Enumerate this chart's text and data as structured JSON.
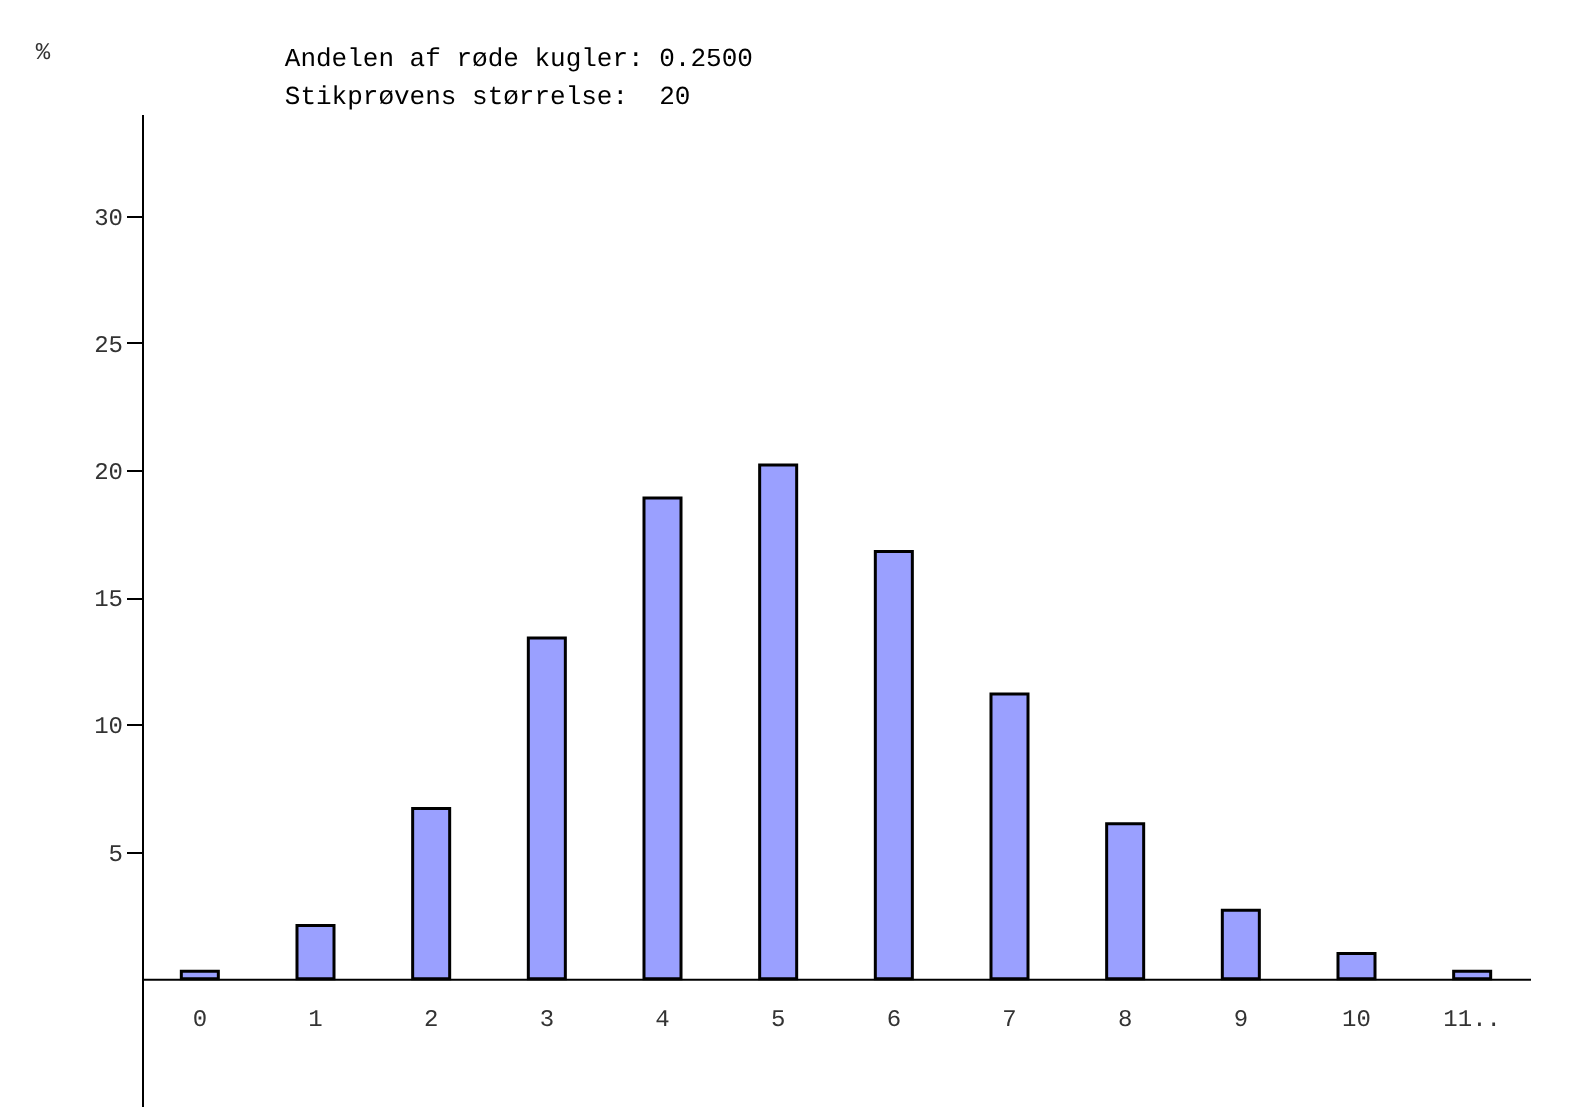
{
  "chart_data": {
    "type": "bar",
    "title": "Andelen af røde kugler: 0.2500",
    "subtitle": "Stikprøvens størrelse:  20",
    "ylabel": "%",
    "categories": [
      "0",
      "1",
      "2",
      "3",
      "4",
      "5",
      "6",
      "7",
      "8",
      "9",
      "10",
      "11.."
    ],
    "values": [
      0.3,
      2.1,
      6.7,
      13.4,
      18.9,
      20.2,
      16.8,
      11.2,
      6.1,
      2.7,
      1.0,
      0.3
    ],
    "color": "#9aa0ff",
    "ylim": [
      -5,
      34
    ],
    "yticks": [
      5,
      10,
      15,
      20,
      25,
      30
    ],
    "grid": false
  }
}
